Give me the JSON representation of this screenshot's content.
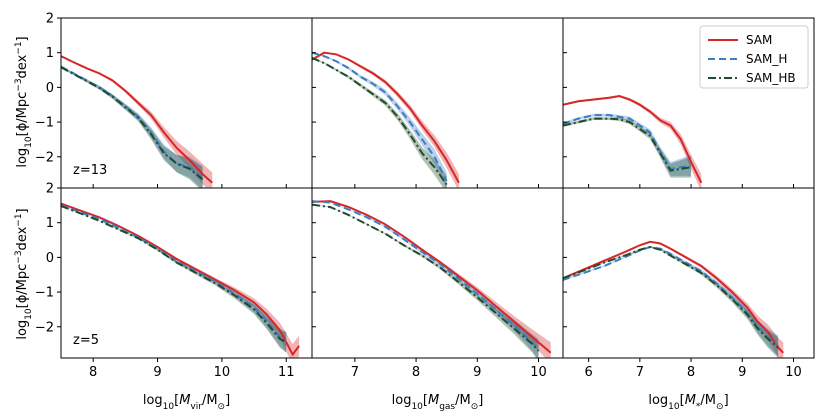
{
  "chart_data": {
    "type": "line",
    "ylabel": "log10[ϕ/Mpc⁻³dex⁻¹]",
    "ylim": [
      -2.9,
      2.0
    ],
    "yticks": [
      2,
      1,
      0,
      -1,
      -2
    ],
    "yticks_bottom_row": [
      2,
      1,
      0,
      -1,
      -2
    ],
    "legend": {
      "placement": "top-right",
      "entries": [
        {
          "name": "SAM",
          "color": "#d62728",
          "style": "solid"
        },
        {
          "name": "SAM_H",
          "color": "#3b7dc4",
          "style": "dashed"
        },
        {
          "name": "SAM_HB",
          "color": "#1e4d2b",
          "style": "dashdot"
        }
      ]
    },
    "rows": [
      {
        "label": "z=13"
      },
      {
        "label": "z=5"
      }
    ],
    "columns": [
      {
        "key": "vir",
        "xlabel": "log10[Mvir/M⊙]",
        "xlabel_parts": {
          "pre": "log",
          "sub1": "10",
          "mid": "[",
          "var": "M",
          "sub2": "vir",
          "post": "/M",
          "post2": "]"
        },
        "xlim": [
          7.5,
          11.4
        ],
        "xticks": [
          8,
          9,
          10,
          11
        ]
      },
      {
        "key": "gas",
        "xlabel": "log10[Mgas/M⊙]",
        "xlabel_parts": {
          "pre": "log",
          "sub1": "10",
          "mid": "[",
          "var": "M",
          "sub2": "gas",
          "post": "/M",
          "post2": "]"
        },
        "xlim": [
          6.3,
          10.4
        ],
        "xticks": [
          7,
          8,
          9,
          10
        ]
      },
      {
        "key": "star",
        "xlabel": "log10[M*/M⊙]",
        "xlabel_parts": {
          "pre": "log",
          "sub1": "10",
          "mid": "[",
          "var": "M",
          "sub2": "*",
          "post": "/M",
          "post2": "]"
        },
        "xlim": [
          5.5,
          10.4
        ],
        "xticks": [
          6,
          7,
          8,
          9,
          10
        ]
      }
    ],
    "panels": [
      {
        "row": 0,
        "col": 0,
        "series": [
          {
            "name": "SAM",
            "x": [
              7.5,
              7.7,
              7.9,
              8.1,
              8.3,
              8.5,
              8.7,
              8.9,
              9.1,
              9.3,
              9.5,
              9.7,
              9.85
            ],
            "y": [
              0.9,
              0.72,
              0.55,
              0.4,
              0.2,
              -0.1,
              -0.45,
              -0.8,
              -1.3,
              -1.75,
              -2.1,
              -2.5,
              -2.75
            ],
            "err": [
              0.02,
              0.02,
              0.02,
              0.03,
              0.04,
              0.05,
              0.07,
              0.1,
              0.15,
              0.2,
              0.25,
              0.3,
              0.3
            ]
          },
          {
            "name": "SAM_H",
            "x": [
              7.5,
              7.7,
              7.9,
              8.1,
              8.3,
              8.5,
              8.7,
              8.9,
              9.1,
              9.3,
              9.5,
              9.7
            ],
            "y": [
              0.6,
              0.4,
              0.2,
              0.0,
              -0.25,
              -0.55,
              -0.85,
              -1.3,
              -1.85,
              -2.2,
              -2.3,
              -2.6
            ],
            "err": [
              0.03,
              0.03,
              0.04,
              0.05,
              0.06,
              0.08,
              0.1,
              0.15,
              0.2,
              0.25,
              0.3,
              0.35
            ]
          },
          {
            "name": "SAM_HB",
            "x": [
              7.5,
              7.7,
              7.9,
              8.1,
              8.3,
              8.5,
              8.7,
              8.9,
              9.1,
              9.3,
              9.5,
              9.7
            ],
            "y": [
              0.58,
              0.38,
              0.18,
              -0.02,
              -0.27,
              -0.57,
              -0.88,
              -1.35,
              -1.9,
              -2.2,
              -2.35,
              -2.65
            ],
            "err": [
              0.03,
              0.03,
              0.04,
              0.05,
              0.06,
              0.08,
              0.1,
              0.15,
              0.2,
              0.25,
              0.3,
              0.35
            ]
          }
        ]
      },
      {
        "row": 0,
        "col": 1,
        "series": [
          {
            "name": "SAM",
            "x": [
              6.3,
              6.5,
              6.7,
              6.9,
              7.1,
              7.3,
              7.5,
              7.7,
              7.9,
              8.1,
              8.3,
              8.5,
              8.7
            ],
            "y": [
              0.8,
              1.0,
              0.95,
              0.8,
              0.6,
              0.4,
              0.15,
              -0.2,
              -0.6,
              -1.1,
              -1.55,
              -2.1,
              -2.75
            ],
            "err": [
              0.02,
              0.02,
              0.02,
              0.03,
              0.04,
              0.05,
              0.06,
              0.08,
              0.1,
              0.13,
              0.17,
              0.22,
              0.25
            ]
          },
          {
            "name": "SAM_H",
            "x": [
              6.3,
              6.5,
              6.7,
              6.9,
              7.1,
              7.3,
              7.5,
              7.7,
              7.9,
              8.1,
              8.3,
              8.5
            ],
            "y": [
              1.0,
              0.9,
              0.75,
              0.55,
              0.3,
              0.1,
              -0.15,
              -0.55,
              -1.0,
              -1.5,
              -2.0,
              -2.7
            ],
            "err": [
              0.02,
              0.02,
              0.03,
              0.04,
              0.05,
              0.06,
              0.08,
              0.1,
              0.13,
              0.17,
              0.22,
              0.25
            ]
          },
          {
            "name": "SAM_HB",
            "x": [
              6.3,
              6.5,
              6.7,
              6.9,
              7.1,
              7.3,
              7.5,
              7.7,
              7.9,
              8.1,
              8.3,
              8.5
            ],
            "y": [
              0.85,
              0.7,
              0.5,
              0.3,
              0.05,
              -0.2,
              -0.45,
              -0.85,
              -1.35,
              -1.9,
              -2.3,
              -2.8
            ],
            "err": [
              0.02,
              0.02,
              0.03,
              0.04,
              0.05,
              0.06,
              0.08,
              0.1,
              0.13,
              0.17,
              0.22,
              0.25
            ]
          }
        ]
      },
      {
        "row": 0,
        "col": 2,
        "series": [
          {
            "name": "SAM",
            "x": [
              5.5,
              5.8,
              6.1,
              6.4,
              6.6,
              6.8,
              7.0,
              7.2,
              7.4,
              7.6,
              7.8,
              8.0,
              8.2
            ],
            "y": [
              -0.5,
              -0.4,
              -0.35,
              -0.3,
              -0.25,
              -0.35,
              -0.5,
              -0.7,
              -0.95,
              -1.1,
              -1.5,
              -2.15,
              -2.75
            ],
            "err": [
              0.03,
              0.03,
              0.03,
              0.03,
              0.03,
              0.04,
              0.05,
              0.06,
              0.08,
              0.1,
              0.15,
              0.2,
              0.25
            ]
          },
          {
            "name": "SAM_H",
            "x": [
              5.5,
              5.8,
              6.1,
              6.4,
              6.6,
              6.8,
              7.0,
              7.2,
              7.4,
              7.6,
              7.8,
              8.0
            ],
            "y": [
              -1.05,
              -0.9,
              -0.8,
              -0.8,
              -0.85,
              -0.9,
              -1.1,
              -1.3,
              -1.85,
              -2.35,
              -2.3,
              -2.25
            ],
            "err": [
              0.04,
              0.04,
              0.04,
              0.04,
              0.05,
              0.06,
              0.07,
              0.09,
              0.13,
              0.2,
              0.25,
              0.3
            ]
          },
          {
            "name": "SAM_HB",
            "x": [
              5.5,
              5.8,
              6.1,
              6.4,
              6.6,
              6.8,
              7.0,
              7.2,
              7.4,
              7.6,
              7.8,
              8.0
            ],
            "y": [
              -1.1,
              -1.0,
              -0.9,
              -0.9,
              -0.92,
              -1.0,
              -1.2,
              -1.4,
              -1.9,
              -2.4,
              -2.35,
              -2.3
            ],
            "err": [
              0.04,
              0.04,
              0.04,
              0.04,
              0.05,
              0.06,
              0.07,
              0.09,
              0.13,
              0.2,
              0.25,
              0.3
            ]
          }
        ]
      },
      {
        "row": 1,
        "col": 0,
        "series": [
          {
            "name": "SAM",
            "x": [
              7.5,
              7.8,
              8.1,
              8.4,
              8.7,
              9.0,
              9.3,
              9.6,
              9.9,
              10.2,
              10.5,
              10.7,
              10.9,
              11.1,
              11.2
            ],
            "y": [
              1.55,
              1.35,
              1.15,
              0.9,
              0.62,
              0.3,
              -0.05,
              -0.35,
              -0.65,
              -0.95,
              -1.3,
              -1.65,
              -2.1,
              -2.8,
              -2.55
            ],
            "err": [
              0.01,
              0.01,
              0.01,
              0.02,
              0.02,
              0.03,
              0.04,
              0.05,
              0.06,
              0.08,
              0.12,
              0.16,
              0.22,
              0.3,
              0.3
            ]
          },
          {
            "name": "SAM_H",
            "x": [
              7.5,
              7.8,
              8.1,
              8.4,
              8.7,
              9.0,
              9.3,
              9.6,
              9.9,
              10.2,
              10.5,
              10.7,
              10.9,
              11.0
            ],
            "y": [
              1.5,
              1.3,
              1.1,
              0.85,
              0.58,
              0.25,
              -0.12,
              -0.4,
              -0.7,
              -1.05,
              -1.45,
              -1.85,
              -2.3,
              -2.45
            ],
            "err": [
              0.01,
              0.01,
              0.01,
              0.02,
              0.02,
              0.03,
              0.04,
              0.05,
              0.06,
              0.09,
              0.13,
              0.18,
              0.25,
              0.3
            ]
          },
          {
            "name": "SAM_HB",
            "x": [
              7.5,
              7.8,
              8.1,
              8.4,
              8.7,
              9.0,
              9.3,
              9.6,
              9.9,
              10.2,
              10.5,
              10.7,
              10.9,
              11.0
            ],
            "y": [
              1.48,
              1.27,
              1.05,
              0.8,
              0.55,
              0.22,
              -0.15,
              -0.45,
              -0.75,
              -1.1,
              -1.5,
              -1.9,
              -2.35,
              -2.45
            ],
            "err": [
              0.01,
              0.01,
              0.01,
              0.02,
              0.02,
              0.03,
              0.04,
              0.05,
              0.06,
              0.09,
              0.13,
              0.18,
              0.25,
              0.3
            ]
          }
        ]
      },
      {
        "row": 1,
        "col": 1,
        "series": [
          {
            "name": "SAM",
            "x": [
              6.3,
              6.6,
              6.9,
              7.2,
              7.5,
              7.8,
              8.1,
              8.4,
              8.7,
              9.0,
              9.3,
              9.6,
              9.9,
              10.2
            ],
            "y": [
              1.6,
              1.62,
              1.45,
              1.22,
              0.95,
              0.6,
              0.22,
              -0.15,
              -0.55,
              -0.95,
              -1.4,
              -1.85,
              -2.3,
              -2.75
            ],
            "err": [
              0.01,
              0.01,
              0.01,
              0.02,
              0.02,
              0.03,
              0.04,
              0.05,
              0.07,
              0.09,
              0.12,
              0.16,
              0.22,
              0.3
            ]
          },
          {
            "name": "SAM_H",
            "x": [
              6.3,
              6.6,
              6.9,
              7.2,
              7.5,
              7.8,
              8.1,
              8.4,
              8.7,
              9.0,
              9.3,
              9.6,
              9.9,
              10.0
            ],
            "y": [
              1.62,
              1.58,
              1.38,
              1.15,
              0.88,
              0.52,
              0.15,
              -0.2,
              -0.62,
              -1.05,
              -1.5,
              -1.95,
              -2.45,
              -2.65
            ],
            "err": [
              0.01,
              0.01,
              0.01,
              0.02,
              0.02,
              0.03,
              0.04,
              0.05,
              0.07,
              0.09,
              0.12,
              0.16,
              0.25,
              0.3
            ]
          },
          {
            "name": "SAM_HB",
            "x": [
              6.3,
              6.6,
              6.9,
              7.2,
              7.5,
              7.8,
              8.1,
              8.4,
              8.7,
              9.0,
              9.3,
              9.6,
              9.9,
              10.0
            ],
            "y": [
              1.52,
              1.45,
              1.22,
              0.95,
              0.68,
              0.35,
              0.05,
              -0.3,
              -0.72,
              -1.15,
              -1.6,
              -2.05,
              -2.5,
              -2.7
            ],
            "err": [
              0.01,
              0.01,
              0.01,
              0.02,
              0.02,
              0.03,
              0.04,
              0.05,
              0.07,
              0.09,
              0.12,
              0.16,
              0.25,
              0.3
            ]
          }
        ]
      },
      {
        "row": 1,
        "col": 2,
        "series": [
          {
            "name": "SAM",
            "x": [
              5.5,
              5.9,
              6.3,
              6.7,
              7.0,
              7.2,
              7.4,
              7.6,
              7.9,
              8.2,
              8.5,
              8.8,
              9.1,
              9.3,
              9.5,
              9.7,
              9.8
            ],
            "y": [
              -0.6,
              -0.35,
              -0.1,
              0.15,
              0.35,
              0.45,
              0.4,
              0.25,
              0.0,
              -0.25,
              -0.6,
              -1.0,
              -1.45,
              -1.85,
              -2.15,
              -2.6,
              -2.75
            ],
            "err": [
              0.02,
              0.02,
              0.02,
              0.02,
              0.02,
              0.02,
              0.02,
              0.03,
              0.04,
              0.05,
              0.07,
              0.09,
              0.13,
              0.17,
              0.22,
              0.28,
              0.3
            ]
          },
          {
            "name": "SAM_H",
            "x": [
              5.5,
              5.9,
              6.3,
              6.7,
              7.0,
              7.2,
              7.4,
              7.6,
              7.9,
              8.2,
              8.5,
              8.8,
              9.1,
              9.3,
              9.5,
              9.7
            ],
            "y": [
              -0.65,
              -0.45,
              -0.25,
              0.0,
              0.2,
              0.3,
              0.25,
              0.1,
              -0.15,
              -0.4,
              -0.75,
              -1.15,
              -1.6,
              -2.0,
              -2.3,
              -2.55
            ],
            "err": [
              0.02,
              0.02,
              0.02,
              0.02,
              0.02,
              0.02,
              0.02,
              0.03,
              0.04,
              0.05,
              0.07,
              0.09,
              0.13,
              0.18,
              0.25,
              0.3
            ]
          },
          {
            "name": "SAM_HB",
            "x": [
              5.5,
              5.9,
              6.3,
              6.7,
              7.0,
              7.2,
              7.4,
              7.6,
              7.9,
              8.2,
              8.5,
              8.8,
              9.1,
              9.3,
              9.5,
              9.7
            ],
            "y": [
              -0.6,
              -0.38,
              -0.15,
              0.05,
              0.22,
              0.3,
              0.22,
              0.05,
              -0.2,
              -0.45,
              -0.8,
              -1.2,
              -1.65,
              -2.05,
              -2.35,
              -2.6
            ],
            "err": [
              0.02,
              0.02,
              0.02,
              0.02,
              0.02,
              0.02,
              0.02,
              0.03,
              0.04,
              0.05,
              0.07,
              0.09,
              0.13,
              0.18,
              0.25,
              0.3
            ]
          }
        ]
      }
    ]
  }
}
